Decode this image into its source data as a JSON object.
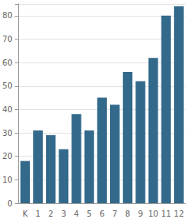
{
  "chart_data": {
    "type": "bar",
    "categories": [
      "K",
      "1",
      "2",
      "3",
      "4",
      "5",
      "6",
      "7",
      "8",
      "9",
      "10",
      "11",
      "12"
    ],
    "values": [
      18,
      31,
      29,
      23,
      38,
      31,
      45,
      42,
      56,
      52,
      62,
      80,
      84
    ],
    "color": "#336a8b",
    "ylim": [
      0,
      85
    ],
    "yticks": [
      0,
      10,
      20,
      30,
      40,
      50,
      60,
      70,
      80
    ],
    "grid": true
  }
}
